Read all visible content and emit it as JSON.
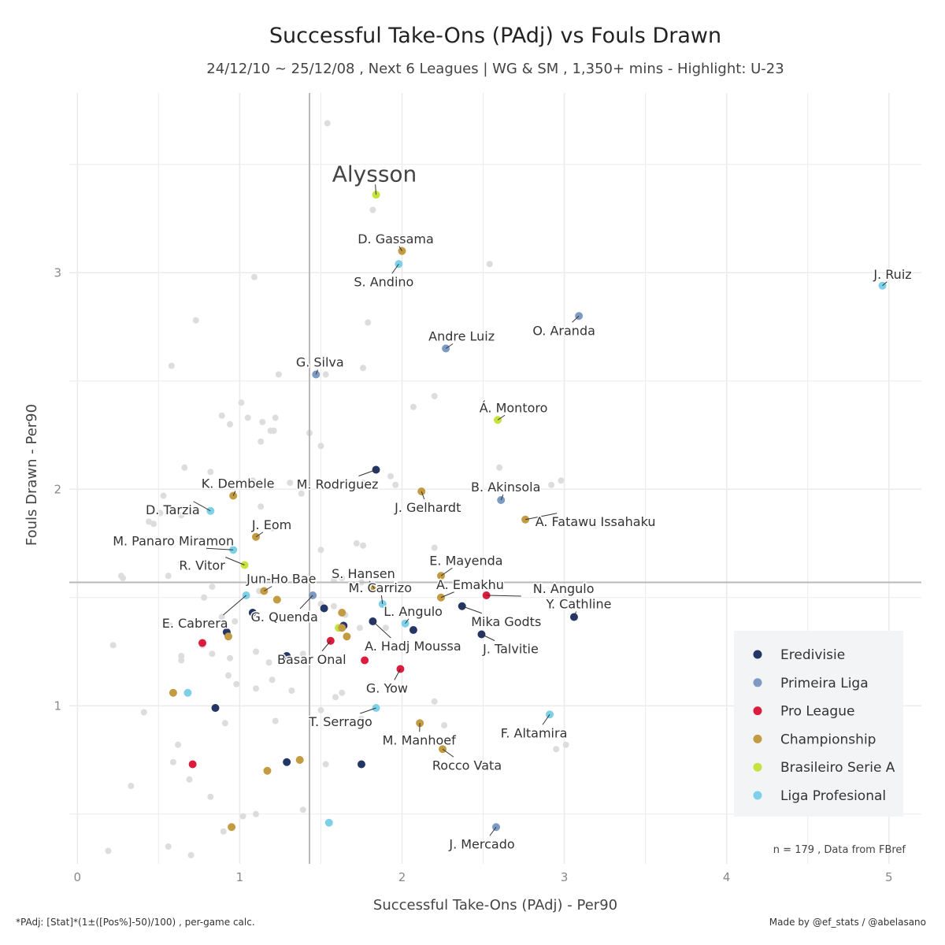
{
  "chart_data": {
    "type": "scatter",
    "title": "Successful Take-Ons (PAdj)  vs  Fouls Drawn",
    "subtitle": "24/12/10 ~ 25/12/08 , Next 6 Leagues | WG & SM , 1,350+ mins - Highlight: U-23",
    "xlabel": "Successful Take-Ons (PAdj)  -  Per90",
    "ylabel": "Fouls Drawn  -  Per90",
    "xlim": [
      -0.05,
      5.2
    ],
    "ylim": [
      0.27,
      3.83
    ],
    "xticks": [
      0,
      1,
      2,
      3,
      4,
      5
    ],
    "yticks": [
      1,
      2,
      3
    ],
    "x_mean": 1.43,
    "y_mean": 1.57,
    "grid": true,
    "legend_position": "bottom-right",
    "legend": [
      {
        "name": "Eredivisie",
        "color": "#243665"
      },
      {
        "name": "Primeira Liga",
        "color": "#7c9ac2"
      },
      {
        "name": "Pro League",
        "color": "#dc1c3c"
      },
      {
        "name": "Championship",
        "color": "#c39b42"
      },
      {
        "name": "Brasileiro Serie A",
        "color": "#c4e33c"
      },
      {
        "name": "Liga Profesional",
        "color": "#7ed0e8"
      }
    ],
    "background_color": "#dddddd",
    "background_points": [
      [
        1.54,
        3.69
      ],
      [
        0.73,
        2.78
      ],
      [
        1.82,
        3.29
      ],
      [
        1.09,
        2.98
      ],
      [
        2.54,
        3.04
      ],
      [
        1.79,
        2.77
      ],
      [
        0.58,
        2.57
      ],
      [
        1.24,
        2.53
      ],
      [
        1.53,
        2.53
      ],
      [
        1.76,
        2.56
      ],
      [
        2.2,
        2.43
      ],
      [
        2.07,
        2.38
      ],
      [
        1.01,
        2.4
      ],
      [
        0.89,
        2.34
      ],
      [
        0.94,
        2.3
      ],
      [
        1.05,
        2.33
      ],
      [
        1.14,
        2.31
      ],
      [
        1.22,
        2.33
      ],
      [
        1.19,
        2.27
      ],
      [
        1.21,
        2.27
      ],
      [
        1.13,
        2.22
      ],
      [
        1.43,
        2.26
      ],
      [
        1.5,
        2.2
      ],
      [
        2.6,
        2.1
      ],
      [
        0.66,
        2.1
      ],
      [
        0.82,
        2.08
      ],
      [
        1.08,
        2.04
      ],
      [
        1.31,
        2.03
      ],
      [
        1.38,
        1.98
      ],
      [
        1.76,
        2.03
      ],
      [
        1.93,
        2.06
      ],
      [
        1.96,
        2.02
      ],
      [
        0.96,
        1.97
      ],
      [
        0.53,
        1.97
      ],
      [
        2.98,
        2.04
      ],
      [
        2.92,
        2.02
      ],
      [
        1.13,
        1.92
      ],
      [
        0.51,
        1.89
      ],
      [
        0.64,
        1.88
      ],
      [
        0.44,
        1.85
      ],
      [
        0.47,
        1.84
      ],
      [
        1.2,
        1.82
      ],
      [
        1.5,
        1.72
      ],
      [
        1.72,
        1.75
      ],
      [
        1.76,
        1.74
      ],
      [
        2.2,
        1.73
      ],
      [
        0.64,
        1.66
      ],
      [
        0.56,
        1.6
      ],
      [
        0.27,
        1.6
      ],
      [
        0.28,
        1.59
      ],
      [
        1.58,
        1.58
      ],
      [
        1.63,
        1.59
      ],
      [
        1.75,
        1.57
      ],
      [
        1.12,
        1.53
      ],
      [
        0.78,
        1.5
      ],
      [
        0.83,
        1.55
      ],
      [
        1.5,
        1.47
      ],
      [
        1.58,
        1.46
      ],
      [
        1.65,
        1.42
      ],
      [
        1.74,
        1.36
      ],
      [
        0.89,
        1.41
      ],
      [
        0.97,
        1.39
      ],
      [
        1.46,
        1.41
      ],
      [
        0.57,
        1.37
      ],
      [
        1.9,
        1.36
      ],
      [
        0.77,
        1.28
      ],
      [
        0.64,
        1.23
      ],
      [
        0.83,
        1.24
      ],
      [
        1.1,
        1.25
      ],
      [
        1.39,
        1.24
      ],
      [
        0.22,
        1.28
      ],
      [
        0.64,
        1.21
      ],
      [
        0.94,
        1.22
      ],
      [
        1.18,
        1.2
      ],
      [
        0.93,
        1.14
      ],
      [
        1.2,
        1.12
      ],
      [
        0.98,
        1.1
      ],
      [
        1.1,
        1.08
      ],
      [
        1.32,
        1.07
      ],
      [
        1.63,
        1.06
      ],
      [
        1.59,
        1.04
      ],
      [
        1.5,
        0.98
      ],
      [
        1.75,
        0.94
      ],
      [
        1.22,
        0.93
      ],
      [
        2.26,
        0.91
      ],
      [
        0.91,
        0.92
      ],
      [
        0.41,
        0.97
      ],
      [
        0.62,
        0.82
      ],
      [
        0.59,
        0.74
      ],
      [
        1.53,
        0.73
      ],
      [
        2.95,
        0.8
      ],
      [
        3.01,
        0.82
      ],
      [
        0.82,
        0.58
      ],
      [
        0.33,
        0.63
      ],
      [
        0.69,
        0.66
      ],
      [
        1.39,
        0.52
      ],
      [
        1.1,
        0.5
      ],
      [
        1.02,
        0.49
      ],
      [
        0.19,
        0.33
      ],
      [
        0.56,
        0.35
      ],
      [
        0.7,
        0.31
      ],
      [
        0.9,
        0.42
      ],
      [
        2.2,
        1.02
      ]
    ],
    "highlight_points": [
      {
        "label": "Alysson",
        "x": 1.84,
        "y": 3.36,
        "league": "Brasileiro Serie A",
        "big": true
      },
      {
        "label": "D. Gassama",
        "x": 2.0,
        "y": 3.1,
        "league": "Championship"
      },
      {
        "label": "S. Andino",
        "x": 1.98,
        "y": 3.04,
        "league": "Liga Profesional"
      },
      {
        "label": "J. Ruiz",
        "x": 4.96,
        "y": 2.94,
        "league": "Liga Profesional"
      },
      {
        "label": "O. Aranda",
        "x": 3.09,
        "y": 2.8,
        "league": "Primeira Liga"
      },
      {
        "label": "Andre Luiz",
        "x": 2.27,
        "y": 2.65,
        "league": "Primeira Liga"
      },
      {
        "label": "G. Silva",
        "x": 1.47,
        "y": 2.53,
        "league": "Primeira Liga"
      },
      {
        "label": "Á. Montoro",
        "x": 2.59,
        "y": 2.32,
        "league": "Brasileiro Serie A"
      },
      {
        "label": "M. Rodriguez",
        "x": 1.84,
        "y": 2.09,
        "league": "Eredivisie"
      },
      {
        "label": "K. Dembele",
        "x": 0.96,
        "y": 1.97,
        "league": "Championship"
      },
      {
        "label": "J. Gelhardt",
        "x": 2.12,
        "y": 1.99,
        "league": "Championship"
      },
      {
        "label": "B. Akinsola",
        "x": 2.61,
        "y": 1.95,
        "league": "Primeira Liga"
      },
      {
        "label": "D. Tarzia",
        "x": 0.82,
        "y": 1.9,
        "league": "Liga Profesional"
      },
      {
        "label": "A. Fatawu Issahaku",
        "x": 2.76,
        "y": 1.86,
        "league": "Championship"
      },
      {
        "label": "J. Eom",
        "x": 1.1,
        "y": 1.78,
        "league": "Championship"
      },
      {
        "label": "M. Panaro Miramon",
        "x": 0.96,
        "y": 1.72,
        "league": "Liga Profesional"
      },
      {
        "label": "R. Vitor",
        "x": 1.03,
        "y": 1.65,
        "league": "Brasileiro Serie A"
      },
      {
        "label": "E. Mayenda",
        "x": 2.24,
        "y": 1.6,
        "league": "Championship"
      },
      {
        "label": "S. Hansen",
        "x": 1.83,
        "y": 1.54,
        "league": "Championship"
      },
      {
        "label": "Jun-Ho Bae",
        "x": 1.15,
        "y": 1.53,
        "league": "Championship"
      },
      {
        "label": "A. Emakhu",
        "x": 2.24,
        "y": 1.5,
        "league": "Championship"
      },
      {
        "label": "N. Angulo",
        "x": 2.52,
        "y": 1.51,
        "league": "Pro League"
      },
      {
        "label": "M. Carrizo",
        "x": 1.88,
        "y": 1.47,
        "league": "Liga Profesional"
      },
      {
        "label": "E. Cabrera",
        "x": 1.04,
        "y": 1.51,
        "league": "Liga Profesional"
      },
      {
        "label": "G. Quenda",
        "x": 1.45,
        "y": 1.51,
        "league": "Primeira Liga"
      },
      {
        "label": "Mika Godts",
        "x": 2.37,
        "y": 1.46,
        "league": "Eredivisie"
      },
      {
        "label": "Y. Cathline",
        "x": 3.06,
        "y": 1.41,
        "league": "Eredivisie"
      },
      {
        "label": "L. Angulo",
        "x": 2.02,
        "y": 1.38,
        "league": "Liga Profesional"
      },
      {
        "label": "A. Hadj Moussa",
        "x": 1.82,
        "y": 1.39,
        "league": "Eredivisie"
      },
      {
        "label": "J. Talvitie",
        "x": 2.49,
        "y": 1.33,
        "league": "Eredivisie"
      },
      {
        "label": "Basar Onal",
        "x": 1.56,
        "y": 1.3,
        "league": "Pro League"
      },
      {
        "label": "G. Yow",
        "x": 1.99,
        "y": 1.17,
        "league": "Pro League"
      },
      {
        "label": "T. Serrago",
        "x": 1.84,
        "y": 0.99,
        "league": "Liga Profesional"
      },
      {
        "label": "M. Manhoef",
        "x": 2.11,
        "y": 0.92,
        "league": "Championship"
      },
      {
        "label": "F. Altamira",
        "x": 2.91,
        "y": 0.96,
        "league": "Liga Profesional"
      },
      {
        "label": "Rocco Vata",
        "x": 2.25,
        "y": 0.8,
        "league": "Championship"
      },
      {
        "label": "J. Mercado",
        "x": 2.58,
        "y": 0.44,
        "league": "Primeira Liga"
      }
    ],
    "other_points": [
      {
        "x": 1.08,
        "y": 1.43,
        "league": "Eredivisie"
      },
      {
        "x": 1.23,
        "y": 1.49,
        "league": "Championship"
      },
      {
        "x": 1.52,
        "y": 1.45,
        "league": "Eredivisie"
      },
      {
        "x": 1.63,
        "y": 1.43,
        "league": "Championship"
      },
      {
        "x": 1.61,
        "y": 1.36,
        "league": "Brasileiro Serie A"
      },
      {
        "x": 1.64,
        "y": 1.37,
        "league": "Eredivisie"
      },
      {
        "x": 1.66,
        "y": 1.32,
        "league": "Championship"
      },
      {
        "x": 1.63,
        "y": 1.36,
        "league": "Championship"
      },
      {
        "x": 2.07,
        "y": 1.35,
        "league": "Eredivisie"
      },
      {
        "x": 0.92,
        "y": 1.34,
        "league": "Eredivisie"
      },
      {
        "x": 0.93,
        "y": 1.32,
        "league": "Championship"
      },
      {
        "x": 0.77,
        "y": 1.29,
        "league": "Pro League"
      },
      {
        "x": 1.29,
        "y": 1.23,
        "league": "Eredivisie"
      },
      {
        "x": 1.77,
        "y": 1.21,
        "league": "Pro League"
      },
      {
        "x": 0.59,
        "y": 1.06,
        "league": "Championship"
      },
      {
        "x": 0.68,
        "y": 1.06,
        "league": "Liga Profesional"
      },
      {
        "x": 0.85,
        "y": 0.99,
        "league": "Eredivisie"
      },
      {
        "x": 1.29,
        "y": 0.74,
        "league": "Eredivisie"
      },
      {
        "x": 1.37,
        "y": 0.75,
        "league": "Championship"
      },
      {
        "x": 1.75,
        "y": 0.73,
        "league": "Eredivisie"
      },
      {
        "x": 1.17,
        "y": 0.7,
        "league": "Championship"
      },
      {
        "x": 0.71,
        "y": 0.73,
        "league": "Pro League"
      },
      {
        "x": 0.95,
        "y": 0.44,
        "league": "Championship"
      },
      {
        "x": 1.55,
        "y": 0.46,
        "league": "Liga Profesional"
      }
    ],
    "annotation": "n =  179  , Data from  FBref"
  },
  "footer": {
    "left": "*PAdj: [Stat]*(1±([Pos%]-50)/100) , per-game calc.",
    "right": "Made by @ef_stats / @abelasano"
  }
}
